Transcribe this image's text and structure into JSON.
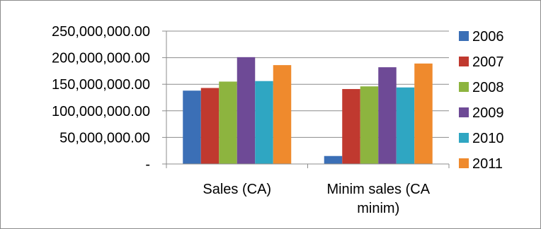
{
  "chart_data": {
    "type": "bar",
    "categories": [
      [
        "Sales  (CA)"
      ],
      [
        "Minim sales (CA",
        "minim)"
      ]
    ],
    "series": [
      {
        "name": "2006",
        "color": "#3b6fb6",
        "values": [
          138000000,
          15000000
        ]
      },
      {
        "name": "2007",
        "color": "#c0392f",
        "values": [
          143000000,
          141000000
        ]
      },
      {
        "name": "2008",
        "color": "#8db43f",
        "values": [
          155000000,
          146000000
        ]
      },
      {
        "name": "2009",
        "color": "#6e4a96",
        "values": [
          201000000,
          182000000
        ]
      },
      {
        "name": "2010",
        "color": "#2fa6c2",
        "values": [
          156000000,
          144000000
        ]
      },
      {
        "name": "2011",
        "color": "#ef8a2d",
        "values": [
          186000000,
          189000000
        ]
      }
    ],
    "yticks": [
      {
        "value": 0,
        "label": "-"
      },
      {
        "value": 50000000,
        "label": "50,000,000.00"
      },
      {
        "value": 100000000,
        "label": "100,000,000.00"
      },
      {
        "value": 150000000,
        "label": "150,000,000.00"
      },
      {
        "value": 200000000,
        "label": "200,000,000.00"
      },
      {
        "value": 250000000,
        "label": "250,000,000.00"
      }
    ],
    "ylim": [
      0,
      250000000
    ],
    "grid": true,
    "legend_position": "right",
    "title": "",
    "xlabel": "",
    "ylabel": ""
  }
}
